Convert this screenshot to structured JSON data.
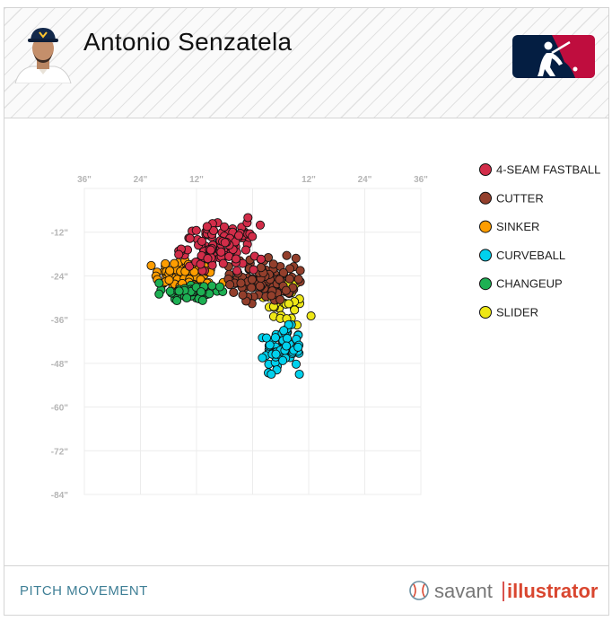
{
  "header": {
    "player_name": "Antonio Senzatela"
  },
  "footer": {
    "title": "PITCH MOVEMENT",
    "brand_savant": "savant",
    "brand_illustrator": "illustrator"
  },
  "chart_data": {
    "type": "scatter",
    "title": "",
    "xlabel": "",
    "ylabel": "",
    "xlim": [
      -36,
      36
    ],
    "ylim": [
      -84,
      0
    ],
    "x_ticks": [
      -36,
      -24,
      -12,
      0,
      12,
      24,
      36
    ],
    "x_tick_labels": [
      "36\"",
      "24\"",
      "12\"",
      "",
      "12\"",
      "24\"",
      "36\""
    ],
    "y_ticks": [
      -12,
      -24,
      -36,
      -48,
      -60,
      -72,
      -84
    ],
    "y_tick_labels": [
      "-12\"",
      "-24\"",
      "-36\"",
      "-48\"",
      "-60\"",
      "-72\"",
      "-84\""
    ],
    "grid": true,
    "legend_position": "right",
    "series": [
      {
        "name": "4-SEAM FASTBALL",
        "color": "#d22d49",
        "center": [
          -7,
          -16
        ],
        "spread": [
          4,
          3
        ],
        "count": 120,
        "extra": [
          [
            -1,
            -8
          ]
        ]
      },
      {
        "name": "CUTTER",
        "color": "#933f2c",
        "center": [
          2.5,
          -25
        ],
        "spread": [
          3.5,
          3
        ],
        "count": 110,
        "extra": [
          [
            -2.5,
            -26
          ]
        ]
      },
      {
        "name": "SINKER",
        "color": "#fe9d00",
        "center": [
          -14,
          -24
        ],
        "spread": [
          3.5,
          2.5
        ],
        "count": 90,
        "extra": []
      },
      {
        "name": "CURVEBALL",
        "color": "#00d1ed",
        "center": [
          6.5,
          -44
        ],
        "spread": [
          2,
          3
        ],
        "count": 70,
        "extra": [
          [
            4,
            -51
          ],
          [
            10,
            -51
          ]
        ]
      },
      {
        "name": "CHANGEUP",
        "color": "#1db053",
        "center": [
          -13,
          -28.5
        ],
        "spread": [
          3,
          1.3
        ],
        "count": 55,
        "extra": [
          [
            -20,
            -26
          ],
          [
            -20,
            -29
          ],
          [
            -7,
            -27
          ]
        ]
      },
      {
        "name": "SLIDER",
        "color": "#eee716",
        "center": [
          7,
          -31
        ],
        "spread": [
          2.2,
          3.5
        ],
        "count": 30,
        "extra": [
          [
            12.5,
            -35
          ],
          [
            9.5,
            -37.5
          ]
        ]
      }
    ]
  }
}
